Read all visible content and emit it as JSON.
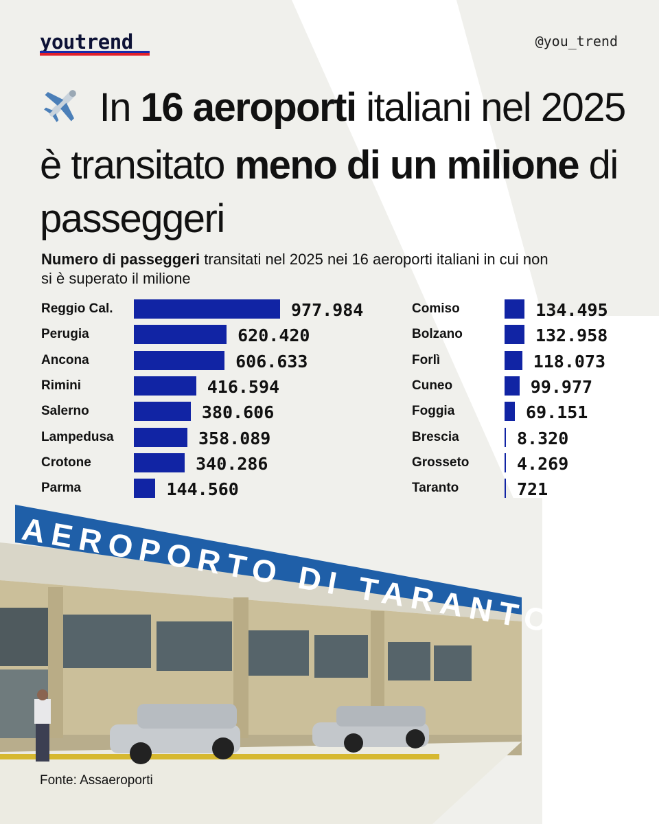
{
  "header": {
    "logo": "youtrend",
    "handle": "@you_trend"
  },
  "title": {
    "part1": " In ",
    "bold1": "16 aeroporti",
    "part2": " italiani nel 2025 è transitato ",
    "bold2": "meno di un milione",
    "part3": " di passeggeri",
    "icon": "airplane-icon"
  },
  "subtitle": {
    "bold": "Numero di passeggeri",
    "rest": " transitati nel 2025 nei 16 aeroporti italiani in cui non si è superato il milione"
  },
  "photo": {
    "sign_text": "AEROPORTO DI TARANTO"
  },
  "source": "Fonte: Assaeroporti",
  "colors": {
    "bar": "#1124a4",
    "background": "#f0f0ec"
  },
  "chart_data": {
    "type": "bar",
    "orientation": "horizontal",
    "series": [
      {
        "categories": [
          "Reggio Cal.",
          "Perugia",
          "Ancona",
          "Rimini",
          "Salerno",
          "Lampedusa",
          "Crotone",
          "Parma"
        ],
        "values": [
          977984,
          620420,
          606633,
          416594,
          380606,
          358089,
          340286,
          144560
        ],
        "labels": [
          "977.984",
          "620.420",
          "606.633",
          "416.594",
          "380.606",
          "358.089",
          "340.286",
          "144.560"
        ]
      },
      {
        "categories": [
          "Comiso",
          "Bolzano",
          "Forlì",
          "Cuneo",
          "Foggia",
          "Brescia",
          "Grosseto",
          "Taranto"
        ],
        "values": [
          134495,
          132958,
          118073,
          99977,
          69151,
          8320,
          4269,
          721
        ],
        "labels": [
          "134.495",
          "132.958",
          "118.073",
          "99.977",
          "69.151",
          "8.320",
          "4.269",
          "721"
        ]
      }
    ]
  }
}
